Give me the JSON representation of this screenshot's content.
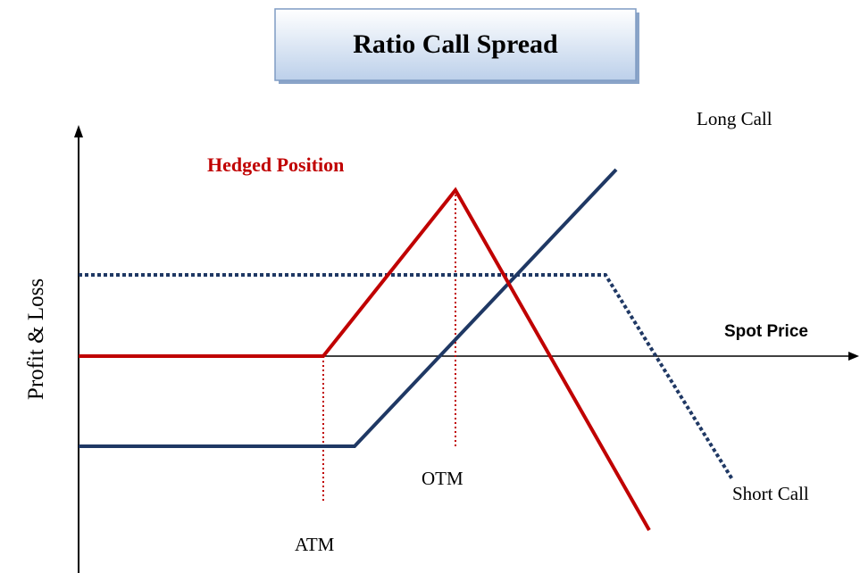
{
  "title": "Ratio Call Spread",
  "y_axis_label": "Profit & Loss",
  "x_axis_label": "Spot Price",
  "labels": {
    "hedged_position": "Hedged Position",
    "long_call": "Long Call",
    "short_call": "Short Call",
    "otm": "OTM",
    "atm": "ATM"
  }
}
